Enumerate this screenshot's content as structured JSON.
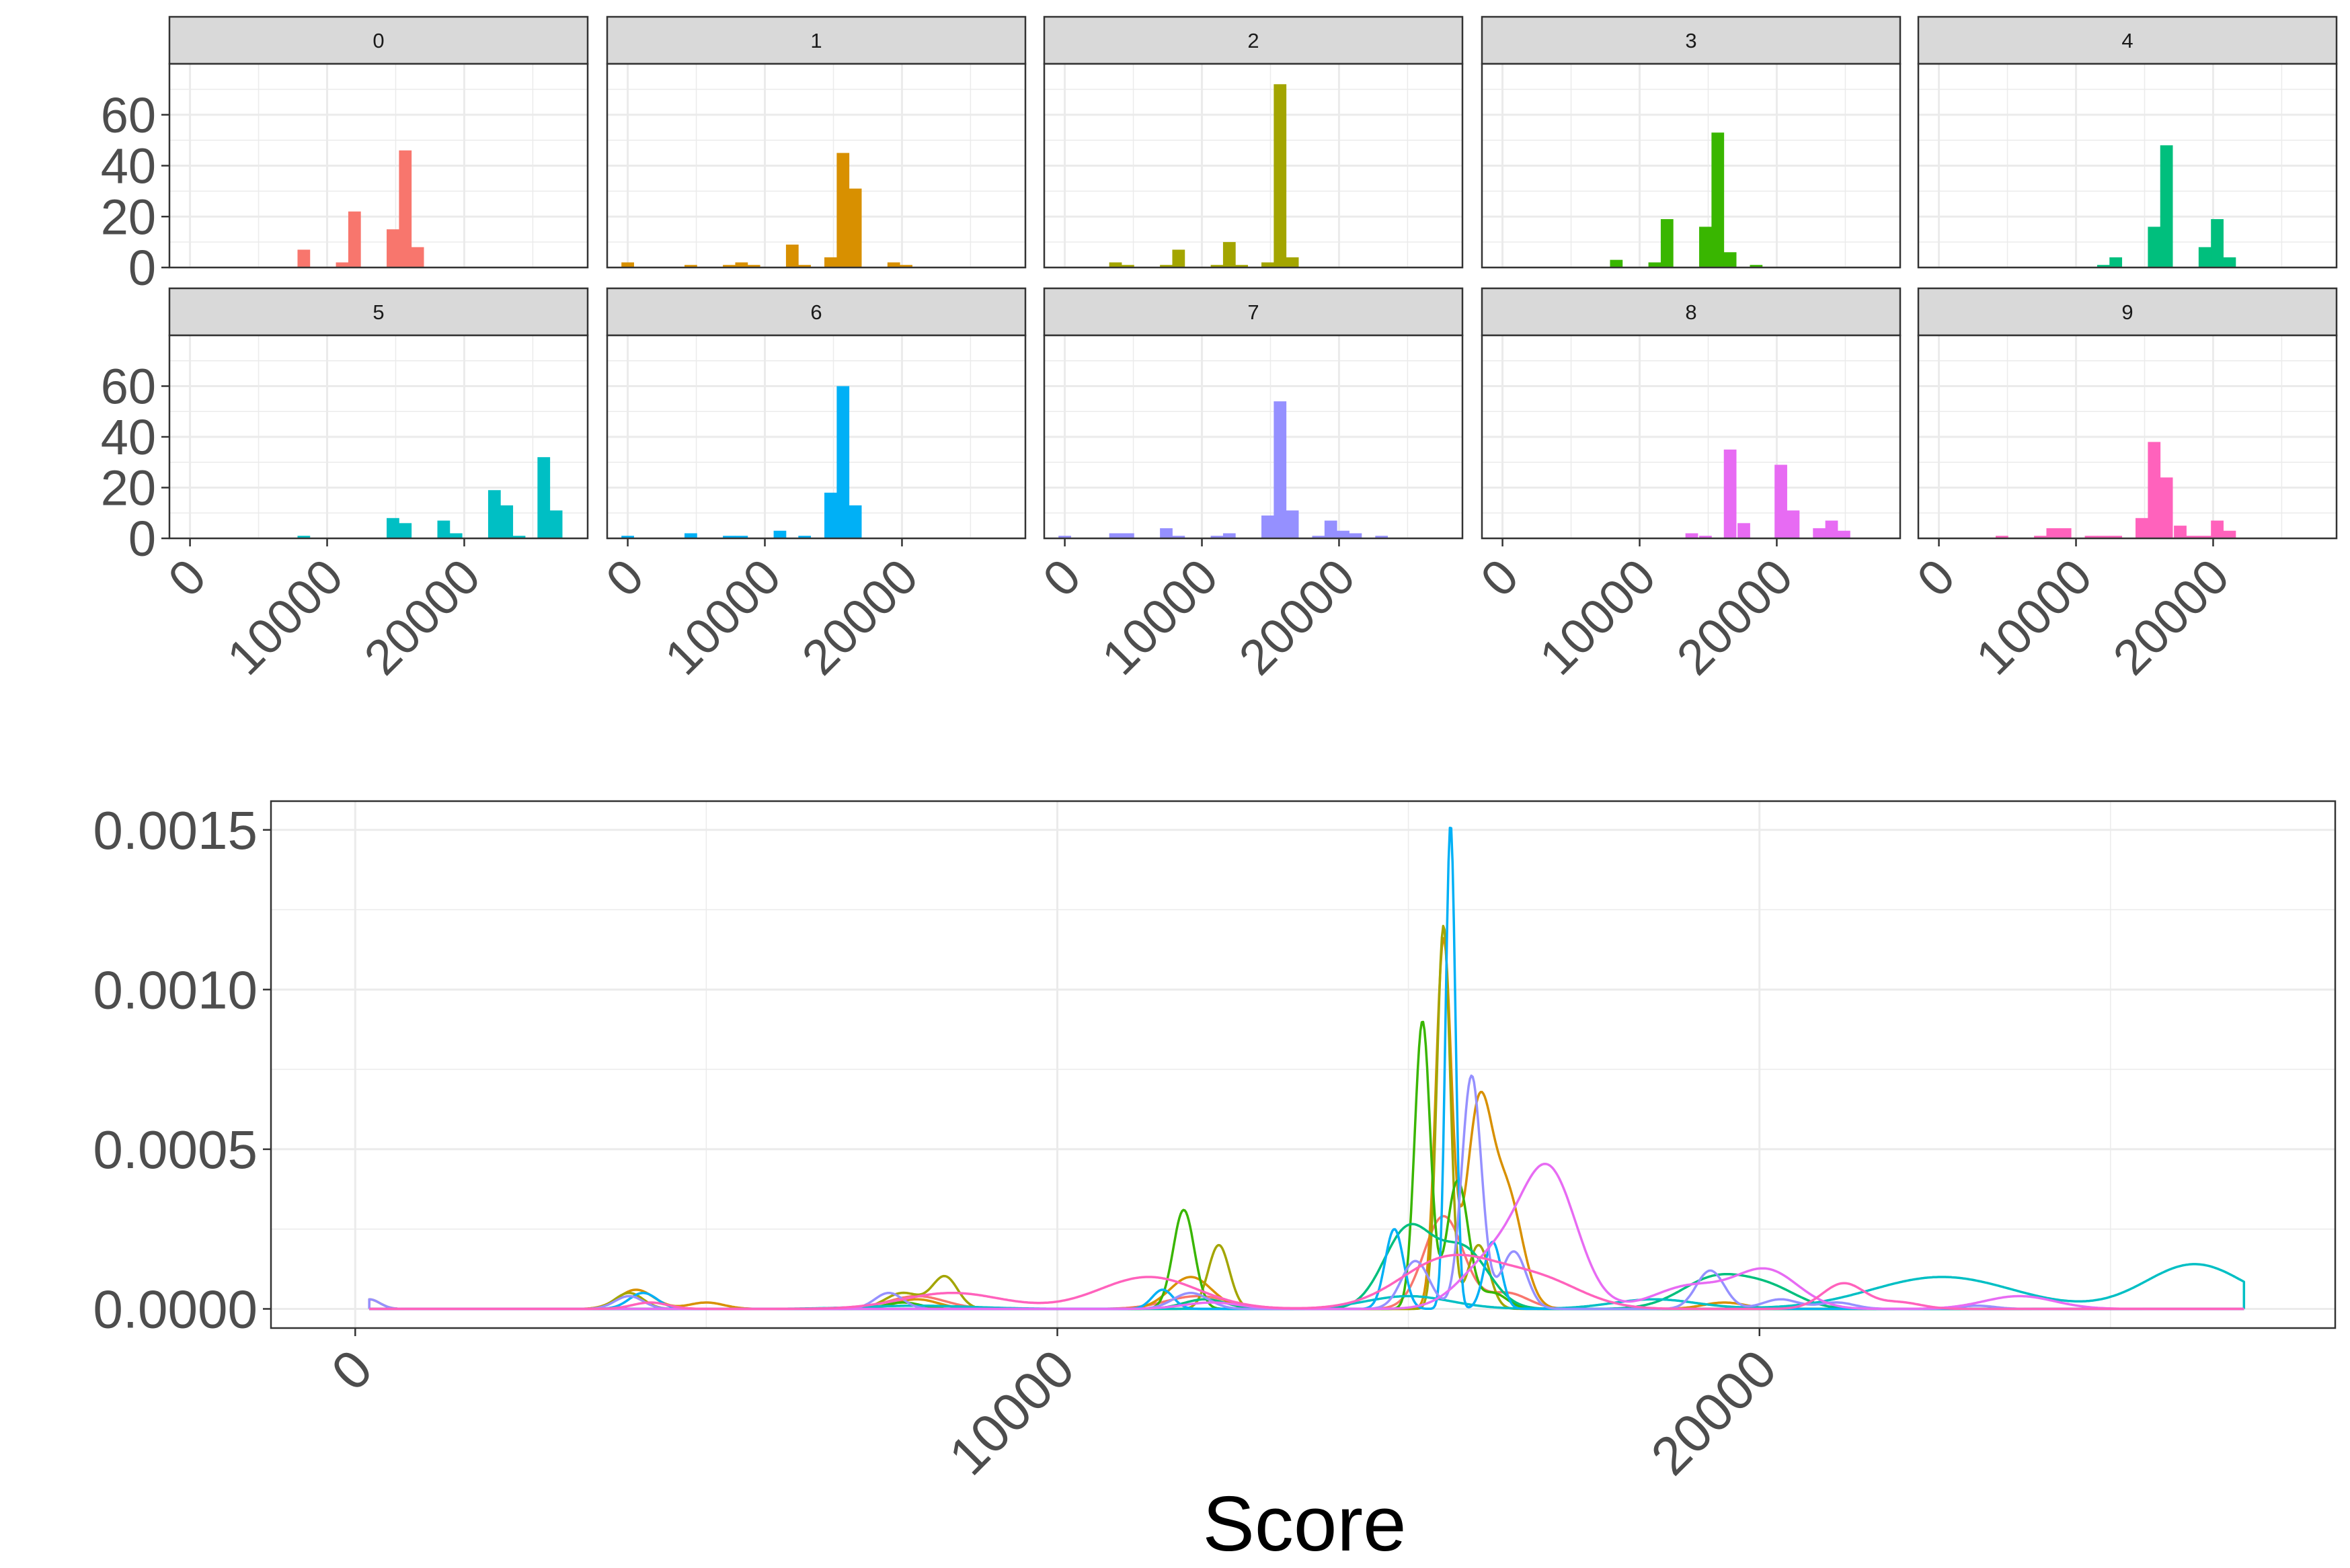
{
  "colors": {
    "0": "#F8766D",
    "1": "#D89000",
    "2": "#A3A500",
    "3": "#39B600",
    "4": "#00BF7D",
    "5": "#00BFC4",
    "6": "#00B0F6",
    "7": "#9590FF",
    "8": "#E76BF3",
    "9": "#FF62BC",
    "strip": "#d9d9d9",
    "grid": "#ebebeb",
    "panel_border": "#333333",
    "text": "#4d4d4d"
  },
  "chart_data": [
    {
      "type": "bar",
      "facet_labels": [
        "0",
        "1",
        "2",
        "3",
        "4",
        "5",
        "6",
        "7",
        "8",
        "9"
      ],
      "xlim": [
        -1500,
        29000
      ],
      "x_ticks": [
        0,
        10000,
        20000
      ],
      "x_tick_labels": [
        "0",
        "10000",
        "20000"
      ],
      "ylim": [
        0,
        80
      ],
      "y_ticks": [
        0,
        20,
        40,
        60
      ],
      "y_tick_labels": [
        "0",
        "20",
        "40",
        "60"
      ],
      "bin_width": 920,
      "grid": true,
      "panels": [
        {
          "label": "0",
          "bars": [
            [
              8300,
              7
            ],
            [
              11100,
              2
            ],
            [
              12000,
              22
            ],
            [
              14800,
              15
            ],
            [
              15700,
              46
            ],
            [
              16600,
              8
            ]
          ]
        },
        {
          "label": "1",
          "bars": [
            [
              0,
              2
            ],
            [
              4600,
              1
            ],
            [
              7400,
              1
            ],
            [
              8300,
              2
            ],
            [
              9200,
              1
            ],
            [
              12000,
              9
            ],
            [
              12900,
              1
            ],
            [
              14800,
              4
            ],
            [
              15700,
              45
            ],
            [
              16600,
              31
            ],
            [
              19400,
              2
            ],
            [
              20300,
              1
            ]
          ]
        },
        {
          "label": "2",
          "bars": [
            [
              3700,
              2
            ],
            [
              4600,
              1
            ],
            [
              7400,
              1
            ],
            [
              8300,
              7
            ],
            [
              11100,
              1
            ],
            [
              12000,
              10
            ],
            [
              12900,
              1
            ],
            [
              14800,
              2
            ],
            [
              15700,
              72
            ],
            [
              16600,
              4
            ]
          ]
        },
        {
          "label": "3",
          "bars": [
            [
              8300,
              3
            ],
            [
              11100,
              2
            ],
            [
              12000,
              19
            ],
            [
              14800,
              16
            ],
            [
              15700,
              53
            ],
            [
              16600,
              6
            ],
            [
              18500,
              1
            ]
          ]
        },
        {
          "label": "4",
          "bars": [
            [
              12000,
              1
            ],
            [
              12900,
              4
            ],
            [
              15700,
              16
            ],
            [
              16600,
              48
            ],
            [
              19400,
              8
            ],
            [
              20300,
              19
            ],
            [
              21200,
              4
            ]
          ]
        },
        {
          "label": "5",
          "bars": [
            [
              8300,
              1
            ],
            [
              14800,
              8
            ],
            [
              15700,
              6
            ],
            [
              18500,
              7
            ],
            [
              19400,
              2
            ],
            [
              22200,
              19
            ],
            [
              23100,
              13
            ],
            [
              24000,
              1
            ],
            [
              25800,
              32
            ],
            [
              26700,
              11
            ]
          ]
        },
        {
          "label": "6",
          "bars": [
            [
              0,
              1
            ],
            [
              4600,
              2
            ],
            [
              7400,
              1
            ],
            [
              8300,
              1
            ],
            [
              11100,
              3
            ],
            [
              12900,
              1
            ],
            [
              14800,
              18
            ],
            [
              15700,
              60
            ],
            [
              16600,
              13
            ]
          ]
        },
        {
          "label": "7",
          "bars": [
            [
              0,
              1
            ],
            [
              3700,
              2
            ],
            [
              4600,
              2
            ],
            [
              7400,
              4
            ],
            [
              8300,
              1
            ],
            [
              11100,
              1
            ],
            [
              12000,
              2
            ],
            [
              14800,
              9
            ],
            [
              15700,
              54
            ],
            [
              16600,
              11
            ],
            [
              18500,
              1
            ],
            [
              19400,
              7
            ],
            [
              20300,
              3
            ],
            [
              21200,
              2
            ],
            [
              23100,
              1
            ]
          ]
        },
        {
          "label": "8",
          "bars": [
            [
              13800,
              2
            ],
            [
              14800,
              1
            ],
            [
              16600,
              35
            ],
            [
              17600,
              6
            ],
            [
              20300,
              29
            ],
            [
              21200,
              11
            ],
            [
              23100,
              4
            ],
            [
              24000,
              7
            ],
            [
              24900,
              3
            ]
          ]
        },
        {
          "label": "9",
          "bars": [
            [
              4600,
              1
            ],
            [
              7400,
              1
            ],
            [
              8300,
              4
            ],
            [
              9200,
              4
            ],
            [
              11100,
              1
            ],
            [
              12000,
              1
            ],
            [
              12900,
              1
            ],
            [
              14800,
              8
            ],
            [
              15700,
              38
            ],
            [
              16600,
              24
            ],
            [
              17600,
              5
            ],
            [
              18500,
              1
            ],
            [
              19400,
              1
            ],
            [
              20300,
              7
            ],
            [
              21200,
              3
            ]
          ]
        }
      ]
    },
    {
      "type": "line",
      "xlabel": "Score",
      "ylabel": "",
      "xlim": [
        -1200,
        28200
      ],
      "ylim": [
        -6e-05,
        0.00159
      ],
      "x_ticks": [
        0,
        10000,
        20000
      ],
      "x_tick_labels": [
        "0",
        "10000",
        "20000"
      ],
      "y_ticks": [
        0,
        0.0005,
        0.001,
        0.0015
      ],
      "y_tick_labels": [
        "0.0000",
        "0.0005",
        "0.0010",
        "0.0015"
      ],
      "grid": true,
      "x_range": [
        200,
        26900
      ],
      "series": [
        {
          "group": "0",
          "peaks": [
            [
              8000,
              4e-05,
              400
            ],
            [
              12000,
              4e-05,
              450
            ],
            [
              15500,
              0.00029,
              280
            ],
            [
              16400,
              5e-05,
              300
            ]
          ]
        },
        {
          "group": "1",
          "peaks": [
            [
              200,
              3e-05,
              150
            ],
            [
              4000,
              6e-05,
              250
            ],
            [
              5000,
              2e-05,
              250
            ],
            [
              8000,
              3e-05,
              300
            ],
            [
              11900,
              0.0001,
              300
            ],
            [
              15500,
              0.00115,
              110
            ],
            [
              16000,
              0.0006,
              180
            ],
            [
              16400,
              0.00036,
              220
            ],
            [
              19500,
              2e-05,
              300
            ]
          ]
        },
        {
          "group": "2",
          "peaks": [
            [
              3900,
              5e-05,
              200
            ],
            [
              7800,
              5e-05,
              250
            ],
            [
              8400,
              0.0001,
              180
            ],
            [
              12300,
              0.0002,
              150
            ],
            [
              15500,
              0.0012,
              95
            ],
            [
              16000,
              0.0002,
              150
            ]
          ]
        },
        {
          "group": "3",
          "peaks": [
            [
              7800,
              2e-05,
              250
            ],
            [
              11800,
              0.00031,
              150
            ],
            [
              15200,
              0.0009,
              110
            ],
            [
              15700,
              0.0004,
              150
            ],
            [
              16200,
              5e-05,
              200
            ]
          ]
        },
        {
          "group": "4",
          "peaks": [
            [
              12100,
              3e-05,
              300
            ],
            [
              15000,
              0.00025,
              350
            ],
            [
              15800,
              0.00018,
              350
            ],
            [
              19400,
              0.0001,
              500
            ],
            [
              20200,
              5e-05,
              400
            ]
          ]
        },
        {
          "group": "5",
          "peaks": [
            [
              8000,
              1e-05,
              800
            ],
            [
              15000,
              4e-05,
              600
            ],
            [
              18500,
              3e-05,
              600
            ],
            [
              22600,
              0.0001,
              1000
            ],
            [
              26200,
              0.00014,
              700
            ]
          ]
        },
        {
          "group": "6",
          "peaks": [
            [
              4100,
              5e-05,
              200
            ],
            [
              11500,
              6e-05,
              150
            ],
            [
              14800,
              0.00025,
              130
            ],
            [
              15600,
              0.00152,
              70
            ],
            [
              16200,
              0.00021,
              120
            ]
          ]
        },
        {
          "group": "7",
          "peaks": [
            [
              200,
              3e-05,
              150
            ],
            [
              3900,
              4e-05,
              200
            ],
            [
              7600,
              5e-05,
              200
            ],
            [
              11900,
              5e-05,
              250
            ],
            [
              15100,
              0.00015,
              200
            ],
            [
              15900,
              0.00073,
              140
            ],
            [
              16500,
              0.00018,
              180
            ],
            [
              19300,
              0.00012,
              200
            ],
            [
              20300,
              3e-05,
              250
            ],
            [
              21100,
              2e-05,
              250
            ],
            [
              23100,
              1e-05,
              250
            ]
          ]
        },
        {
          "group": "8",
          "peaks": [
            [
              12200,
              2e-05,
              400
            ],
            [
              16200,
              0.00015,
              450
            ],
            [
              17000,
              0.00042,
              400
            ],
            [
              19000,
              7e-05,
              500
            ],
            [
              20100,
              0.00012,
              450
            ],
            [
              23700,
              4e-05,
              500
            ]
          ]
        },
        {
          "group": "9",
          "peaks": [
            [
              4200,
              2e-05,
              250
            ],
            [
              8500,
              5e-05,
              700
            ],
            [
              11300,
              0.0001,
              700
            ],
            [
              15600,
              0.00016,
              700
            ],
            [
              16900,
              8e-05,
              600
            ],
            [
              21200,
              8e-05,
              300
            ],
            [
              22000,
              2e-05,
              300
            ]
          ]
        }
      ]
    }
  ]
}
